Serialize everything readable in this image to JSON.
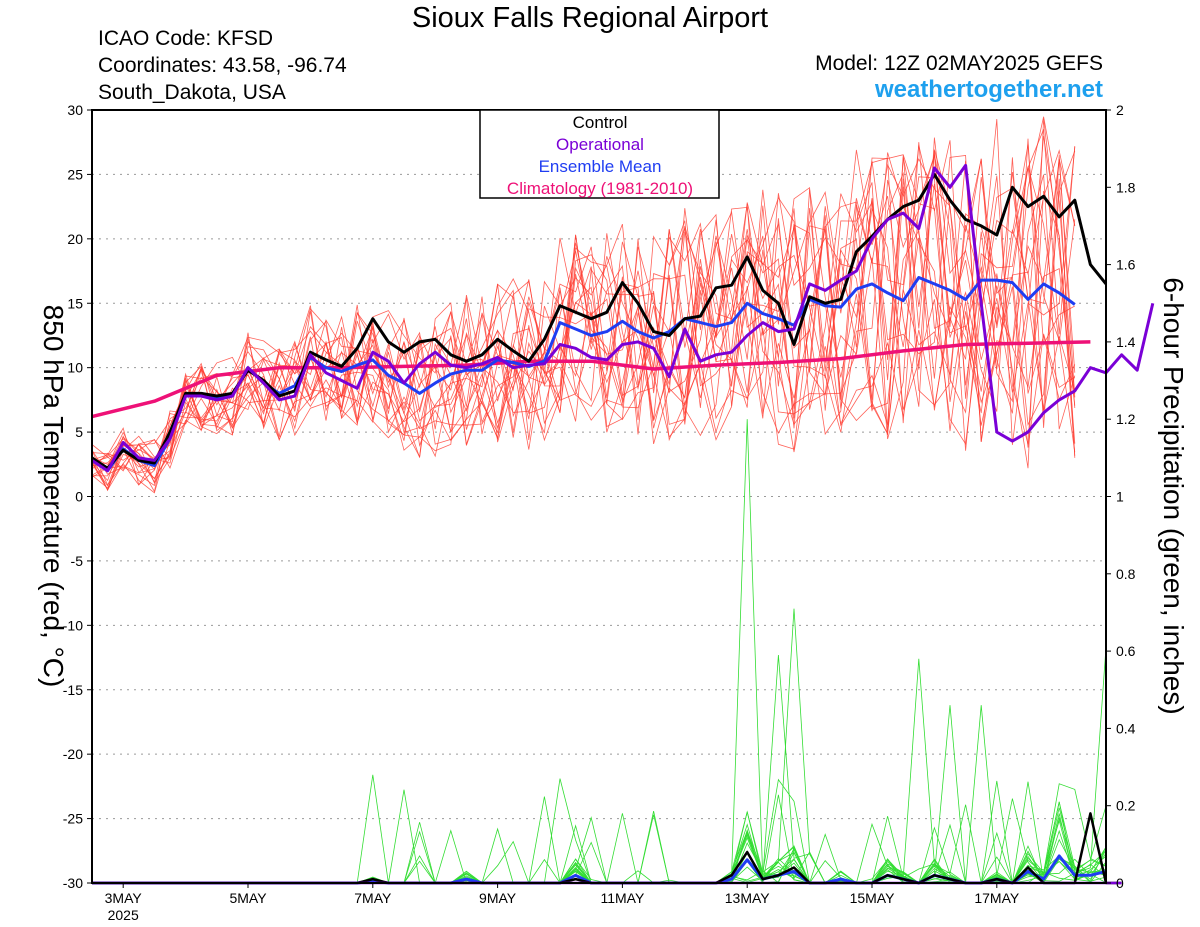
{
  "header": {
    "title": "Sioux Falls Regional Airport",
    "icao": "ICAO Code: KFSD",
    "coords": "Coordinates: 43.58, -96.74",
    "location": "South_Dakota, USA",
    "model": "Model: 12Z 02MAY2025 GEFS",
    "site": "weathertogether.net"
  },
  "colors": {
    "members_temp": "#ff3b2f",
    "members_precip": "#33dd33",
    "control": "#000000",
    "operational": "#7a00d6",
    "ensemble_mean": "#1f3df2",
    "climatology": "#ee1177",
    "site": "#1ea0ee"
  },
  "chart_data": {
    "type": "line",
    "title": "Sioux Falls Regional Airport",
    "ylabel": "850 hPa Temperature (red, °C)",
    "y2label": "6-hour Precipitation (green, inches)",
    "ylim": [
      -30,
      30
    ],
    "y2lim": [
      0,
      2
    ],
    "yticks": [
      "30",
      "25",
      "20",
      "15",
      "10",
      "5",
      "0",
      "-5",
      "-10",
      "-15",
      "-20",
      "-25",
      "-30"
    ],
    "y2ticks": [
      "2",
      "1.8",
      "1.6",
      "1.4",
      "1.2",
      "1",
      "0.8",
      "0.6",
      "0.4",
      "0.2",
      "0"
    ],
    "xticks": [
      "3MAY",
      "5MAY",
      "7MAY",
      "9MAY",
      "11MAY",
      "13MAY",
      "15MAY",
      "17MAY"
    ],
    "xyear": "2025",
    "x_unit": "6-hour steps from 12Z 02MAY2025",
    "grid": true,
    "legend": {
      "position": "top-center",
      "entries": [
        "Control",
        "Operational",
        "Ensemble Mean",
        "Climatology (1981-2010)"
      ]
    },
    "series": [
      {
        "name": "Control",
        "values": [
          3.0,
          2.2,
          3.6,
          2.8,
          2.6,
          5.0,
          8.0,
          8.0,
          7.8,
          8.0,
          9.8,
          9.0,
          7.8,
          8.2,
          11.2,
          10.6,
          10.1,
          11.5,
          13.8,
          12.0,
          11.2,
          12.0,
          12.2,
          11.0,
          10.5,
          11.0,
          12.2,
          11.3,
          10.5,
          12.2,
          14.8,
          14.3,
          13.8,
          14.3,
          16.6,
          15.0,
          12.8,
          12.5,
          13.8,
          14.0,
          16.2,
          16.4,
          18.6,
          16.0,
          15.0,
          11.8,
          15.5,
          15.0,
          15.3,
          19.0,
          20.2,
          21.5,
          22.5,
          23.0,
          25.0,
          23.0,
          21.5,
          21.0,
          20.3,
          24.0,
          22.5,
          23.3,
          21.7,
          23.0,
          18.0,
          16.5
        ]
      },
      {
        "name": "Operational",
        "values": [
          2.8,
          2.0,
          4.2,
          3.0,
          2.8,
          4.5,
          7.8,
          7.8,
          7.5,
          7.8,
          10.0,
          8.8,
          7.5,
          7.8,
          11.0,
          9.6,
          9.0,
          8.4,
          11.2,
          10.5,
          8.8,
          10.3,
          11.2,
          10.2,
          10.0,
          10.3,
          10.8,
          10.0,
          10.2,
          10.3,
          11.8,
          11.5,
          10.8,
          10.6,
          11.8,
          12.0,
          11.5,
          9.3,
          13.0,
          10.5,
          11.0,
          11.2,
          12.5,
          13.5,
          12.8,
          13.0,
          16.5,
          16.0,
          16.8,
          17.5,
          20.0,
          21.5,
          22.0,
          20.8,
          25.5,
          24.0,
          25.7,
          15.0,
          5.0,
          4.3,
          5.0,
          6.5,
          7.5,
          8.2,
          10.0,
          9.6,
          11.0,
          9.8,
          15.0
        ]
      },
      {
        "name": "Ensemble Mean",
        "values": [
          2.8,
          2.0,
          3.7,
          2.8,
          2.4,
          4.5,
          7.8,
          7.8,
          7.6,
          7.8,
          10.0,
          8.8,
          8.0,
          8.6,
          10.8,
          10.0,
          9.7,
          10.2,
          10.6,
          9.4,
          8.8,
          8.0,
          8.8,
          9.5,
          9.8,
          9.8,
          10.6,
          10.4,
          10.1,
          10.5,
          13.5,
          13.0,
          12.5,
          12.8,
          13.6,
          12.8,
          12.3,
          12.8,
          13.8,
          13.5,
          13.2,
          13.5,
          15.0,
          14.2,
          13.8,
          13.3,
          15.3,
          14.8,
          14.7,
          16.1,
          16.5,
          15.8,
          15.2,
          17.0,
          16.5,
          16.0,
          15.3,
          16.8,
          16.8,
          16.6,
          15.3,
          16.5,
          15.8,
          14.9
        ]
      },
      {
        "name": "Climatology (1981-2010)",
        "values": [
          6.2,
          7.4,
          9.4,
          10.0,
          10.0,
          10.1,
          10.2,
          10.5,
          10.5,
          9.9,
          10.2,
          10.4,
          10.7,
          11.3,
          11.8,
          11.9,
          12.0
        ]
      },
      {
        "name": "",
        "values": [
          0.0,
          0.0,
          0.0,
          0.0,
          0.0,
          0.0,
          0.0,
          0.0,
          0.0,
          0.0,
          0.0,
          0.0,
          0.0,
          0.0,
          0.0,
          0.0,
          0.0,
          0.0,
          0.01,
          0.0,
          0.0,
          0.0,
          0.0,
          0.0,
          0.0,
          0.0,
          0.0,
          0.0,
          0.0,
          0.0,
          0.0,
          0.01,
          0.0,
          0.0,
          0.0,
          0.0,
          0.0,
          0.0,
          0.0,
          0.0,
          0.0,
          0.02,
          0.08,
          0.01,
          0.02,
          0.04,
          0.0,
          0.0,
          0.0,
          0.0,
          0.0,
          0.02,
          0.01,
          0.0,
          0.02,
          0.01,
          0.0,
          0.0,
          0.01,
          0.0,
          0.04,
          0.0,
          0.0,
          0.0,
          0.18,
          0.0,
          0.0
        ]
      },
      {
        "name": "",
        "values": [
          0.0,
          0.0,
          0.0,
          0.0,
          0.0,
          0.0,
          0.0,
          0.0,
          0.0,
          0.0,
          0.0,
          0.0,
          0.0,
          0.0,
          0.0,
          0.0,
          0.0,
          0.0,
          0.0,
          0.0,
          0.0,
          0.0,
          0.0,
          0.0,
          0.0,
          0.0,
          0.0,
          0.0,
          0.0,
          0.0,
          0.0,
          0.0,
          0.0,
          0.0,
          0.0,
          0.0,
          0.0,
          0.0,
          0.0,
          0.0,
          0.0,
          0.0,
          0.0,
          0.0,
          0.0,
          0.0,
          0.0,
          0.0,
          0.0,
          0.0,
          0.0,
          0.0,
          0.0,
          0.0,
          0.0,
          0.0,
          0.0,
          0.0,
          0.0,
          0.0,
          0.0,
          0.0,
          0.0,
          0.0,
          0.0,
          0.0,
          0.0
        ]
      },
      {
        "name": "",
        "values": [
          0.0,
          0.0,
          0.0,
          0.0,
          0.0,
          0.0,
          0.0,
          0.0,
          0.0,
          0.0,
          0.0,
          0.0,
          0.0,
          0.0,
          0.0,
          0.0,
          0.0,
          0.0,
          0.005,
          0.0,
          0.0,
          0.0,
          0.0,
          0.0,
          0.01,
          0.0,
          0.0,
          0.0,
          0.0,
          0.0,
          0.0,
          0.02,
          0.0,
          0.0,
          0.0,
          0.0,
          0.0,
          0.0,
          0.0,
          0.0,
          0.0,
          0.01,
          0.06,
          0.01,
          0.02,
          0.03,
          0.0,
          0.0,
          0.01,
          0.0,
          0.0,
          0.02,
          0.01,
          0.0,
          0.02,
          0.01,
          0.0,
          0.0,
          0.01,
          0.0,
          0.03,
          0.01,
          0.07,
          0.02,
          0.02,
          0.03
        ]
      }
    ]
  }
}
